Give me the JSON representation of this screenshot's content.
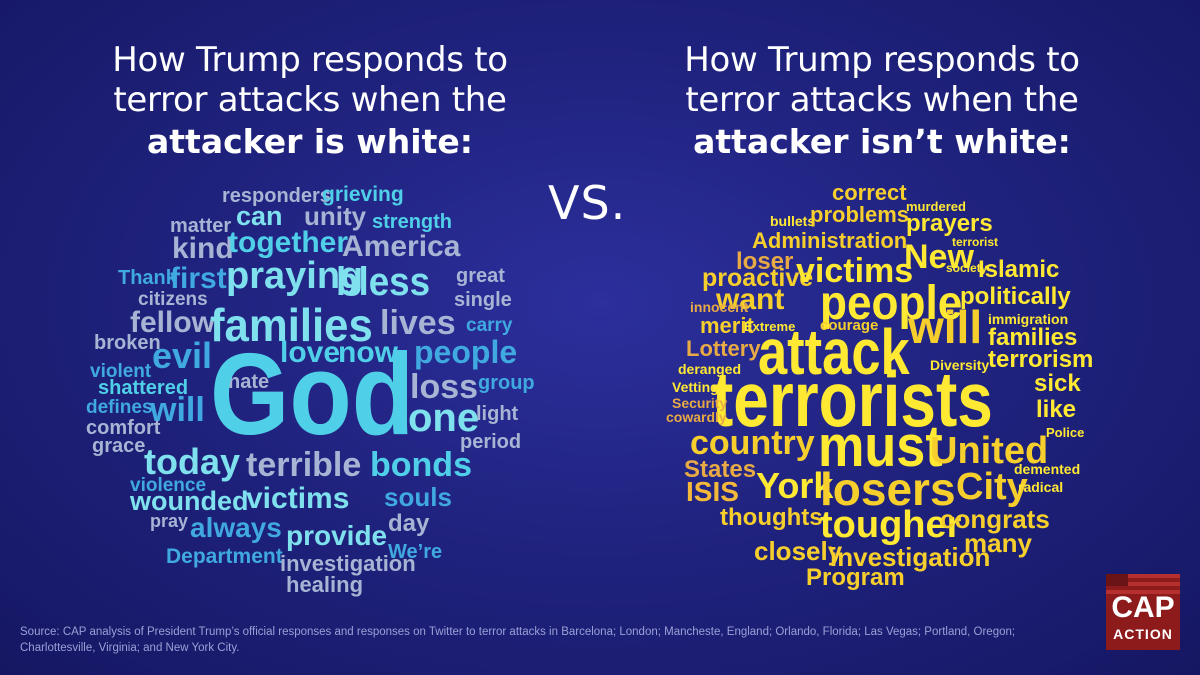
{
  "heading_left": {
    "line1": "How Trump responds to",
    "line2": "terror attacks when the",
    "line3": "attacker is white:"
  },
  "heading_right": {
    "line1": "How Trump responds to",
    "line2": "terror attacks when the",
    "line3": "attacker isn’t white:"
  },
  "vs_label": "VS.",
  "colors": {
    "left_palette": [
      "#4fd0e8",
      "#7fe0ee",
      "#a7b4d4",
      "#3fa9e0"
    ],
    "right_palette": [
      "#ffe933",
      "#f7cf2c",
      "#f4b93a",
      "#e8aa45"
    ]
  },
  "left_words": [
    "responders",
    "grieving",
    "can",
    "unity",
    "strength",
    "matter",
    "kind",
    "together",
    "America",
    "Thank",
    "first",
    "praying",
    "bless",
    "great",
    "single",
    "citizens",
    "fellow",
    "families",
    "lives",
    "carry",
    "broken",
    "evil",
    "love",
    "now",
    "people",
    "violent",
    "hate",
    "God",
    "loss",
    "group",
    "shattered",
    "defines",
    "will",
    "one",
    "light",
    "comfort",
    "grace",
    "period",
    "today",
    "terrible",
    "bonds",
    "violence",
    "souls",
    "wounded",
    "victims",
    "pray",
    "day",
    "always",
    "provide",
    "Department",
    "We’re",
    "investigation",
    "healing"
  ],
  "right_words": [
    "correct",
    "murdered",
    "bullets",
    "problems",
    "prayers",
    "terrorist",
    "Administration",
    "loser",
    "New",
    "society",
    "proactive",
    "victims",
    "Islamic",
    "want",
    "people",
    "politically",
    "innocent",
    "immigration",
    "merit",
    "Extreme",
    "courage",
    "will",
    "families",
    "Lottery",
    "attack",
    "terrorism",
    "deranged",
    "Diversity",
    "Vetting",
    "terrorists",
    "sick",
    "Security",
    "like",
    "cowardly",
    "Police",
    "country",
    "must",
    "United",
    "States",
    "demented",
    "ISIS",
    "York",
    "losers",
    "City",
    "radical",
    "thoughts",
    "tougher",
    "congrats",
    "many",
    "closely",
    "investigation",
    "Program"
  ],
  "source_text": "Source: CAP analysis of President Trump’s official responses and responses on Twitter to terror attacks in Barcelona; London; Mancheste, England; Orlando, Florida; Las Vegas; Portland, Oregon; Charlottesville, Virginia; and New York City.",
  "logo": {
    "line1": "CAP",
    "line2": "ACTION"
  }
}
